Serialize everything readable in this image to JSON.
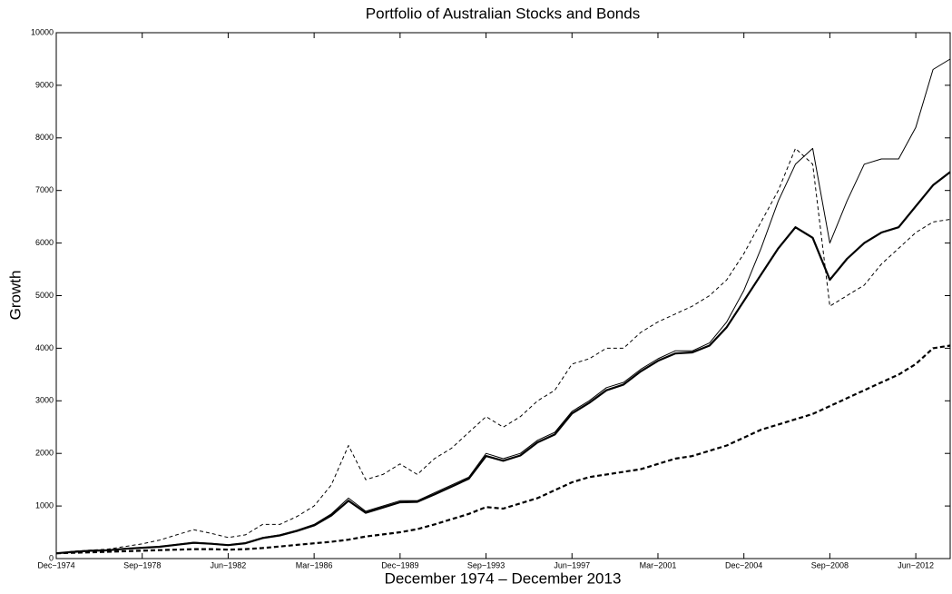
{
  "chart_data": {
    "type": "line",
    "title": "Portfolio of Australian Stocks and Bonds",
    "xlabel": "December 1974 – December 2013",
    "ylabel": "Growth",
    "x": [
      "1974-12",
      "1975-09",
      "1976-06",
      "1977-03",
      "1977-12",
      "1978-09",
      "1979-06",
      "1980-03",
      "1980-12",
      "1981-09",
      "1982-06",
      "1983-03",
      "1983-12",
      "1984-09",
      "1985-06",
      "1986-03",
      "1986-12",
      "1987-09",
      "1988-06",
      "1989-03",
      "1989-12",
      "1990-09",
      "1991-06",
      "1992-03",
      "1992-12",
      "1993-09",
      "1994-06",
      "1995-03",
      "1995-12",
      "1996-09",
      "1997-06",
      "1998-03",
      "1998-12",
      "1999-09",
      "2000-06",
      "2001-03",
      "2001-12",
      "2002-09",
      "2003-06",
      "2004-03",
      "2004-12",
      "2005-09",
      "2006-06",
      "2007-03",
      "2007-12",
      "2008-09",
      "2009-06",
      "2010-03",
      "2010-12",
      "2011-09",
      "2012-06",
      "2013-03",
      "2013-12"
    ],
    "xlim": [
      "1974-12",
      "2013-12"
    ],
    "xticks": [
      {
        "value": "1974-12",
        "label": "Dec−1974"
      },
      {
        "value": "1978-09",
        "label": "Sep−1978"
      },
      {
        "value": "1982-06",
        "label": "Jun−1982"
      },
      {
        "value": "1986-03",
        "label": "Mar−1986"
      },
      {
        "value": "1989-12",
        "label": "Dec−1989"
      },
      {
        "value": "1993-09",
        "label": "Sep−1993"
      },
      {
        "value": "1997-06",
        "label": "Jun−1997"
      },
      {
        "value": "2001-03",
        "label": "Mar−2001"
      },
      {
        "value": "2004-12",
        "label": "Dec−2004"
      },
      {
        "value": "2008-09",
        "label": "Sep−2008"
      },
      {
        "value": "2012-06",
        "label": "Jun−2012"
      }
    ],
    "ylim": [
      0,
      10000
    ],
    "yticks": [
      0,
      1000,
      2000,
      3000,
      4000,
      5000,
      6000,
      7000,
      8000,
      9000,
      10000
    ],
    "grid": false,
    "series": [
      {
        "color": "#000000",
        "width": 1,
        "dash": false,
        "values": [
          100,
          130,
          150,
          160,
          190,
          210,
          230,
          270,
          310,
          290,
          260,
          300,
          400,
          450,
          540,
          650,
          850,
          1150,
          900,
          1000,
          1100,
          1100,
          1250,
          1400,
          1550,
          2000,
          1900,
          2000,
          2250,
          2400,
          2800,
          3000,
          3250,
          3350,
          3600,
          3800,
          3950,
          3950,
          4100,
          4500,
          5100,
          5900,
          6800,
          7500,
          7800,
          6000,
          6800,
          7500,
          7600,
          7600,
          8200,
          9300,
          9500
        ]
      },
      {
        "color": "#000000",
        "width": 2.2,
        "dash": false,
        "values": [
          100,
          128,
          148,
          158,
          186,
          205,
          225,
          262,
          300,
          282,
          255,
          292,
          390,
          440,
          525,
          630,
          820,
          1100,
          870,
          970,
          1070,
          1080,
          1220,
          1370,
          1520,
          1950,
          1860,
          1960,
          2210,
          2360,
          2760,
          2960,
          3200,
          3310,
          3560,
          3760,
          3900,
          3920,
          4050,
          4400,
          4900,
          5400,
          5900,
          6300,
          6100,
          5300,
          5700,
          6000,
          6200,
          6300,
          6700,
          7100,
          7350
        ]
      },
      {
        "color": "#000000",
        "width": 1,
        "dash": true,
        "values": [
          100,
          140,
          160,
          180,
          230,
          280,
          350,
          450,
          550,
          480,
          400,
          450,
          650,
          650,
          800,
          1000,
          1400,
          2150,
          1500,
          1600,
          1800,
          1600,
          1900,
          2100,
          2400,
          2700,
          2500,
          2700,
          3000,
          3200,
          3700,
          3800,
          4000,
          4000,
          4300,
          4500,
          4650,
          4800,
          5000,
          5300,
          5800,
          6400,
          7000,
          7800,
          7500,
          4800,
          5000,
          5200,
          5600,
          5900,
          6200,
          6400,
          6450
        ]
      },
      {
        "color": "#000000",
        "width": 2.2,
        "dash": true,
        "values": [
          100,
          110,
          120,
          130,
          140,
          150,
          160,
          170,
          180,
          180,
          170,
          180,
          200,
          230,
          260,
          290,
          320,
          360,
          420,
          460,
          500,
          560,
          650,
          750,
          850,
          980,
          950,
          1050,
          1150,
          1300,
          1450,
          1550,
          1600,
          1650,
          1700,
          1800,
          1900,
          1950,
          2050,
          2150,
          2300,
          2450,
          2550,
          2650,
          2750,
          2900,
          3050,
          3200,
          3350,
          3500,
          3700,
          4000,
          4050
        ]
      }
    ]
  }
}
